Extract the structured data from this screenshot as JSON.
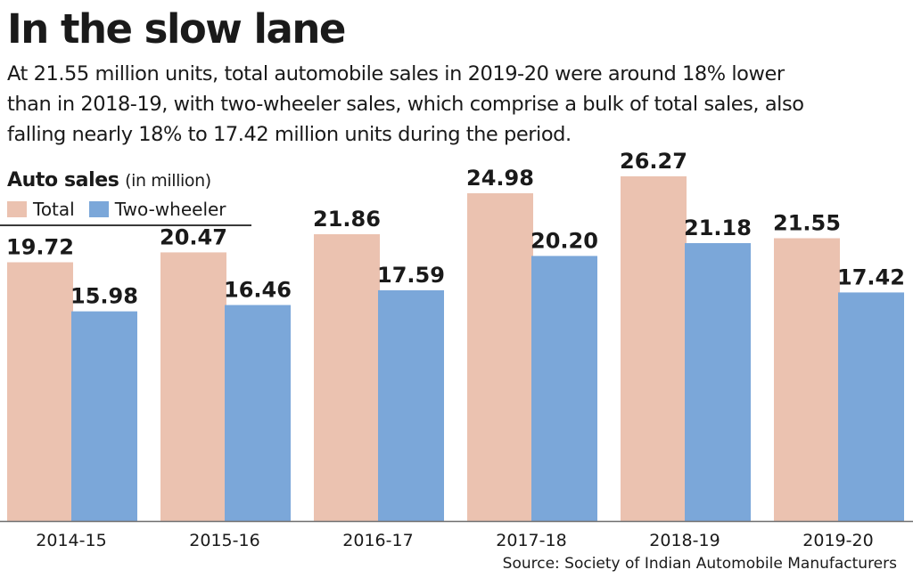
{
  "title": "In the slow lane",
  "subtitle_lines": [
    "At 21.55 million units, total automobile sales in 2019-20 were around 18% lower",
    "than in 2018-19, with two-wheeler sales, which comprise a bulk of total sales, also",
    "falling nearly 18% to 17.42 million units during the period."
  ],
  "section_title": "Auto sales",
  "section_unit": "(in million)",
  "source": "Source: Society of Indian Automobile Manufacturers",
  "colors": {
    "total": "#ebc2b0",
    "two_wheeler": "#7ba7d9",
    "axis": "#6f6f6f",
    "text": "#1a1a1a"
  },
  "chart_data": {
    "type": "bar",
    "categories": [
      "2014-15",
      "2015-16",
      "2016-17",
      "2017-18",
      "2018-19",
      "2019-20"
    ],
    "series": [
      {
        "name": "Total",
        "values": [
          19.72,
          20.47,
          21.86,
          24.98,
          26.27,
          21.55
        ],
        "labels": [
          "19.72",
          "20.47",
          "21.86",
          "24.98",
          "26.27",
          "21.55"
        ]
      },
      {
        "name": "Two-wheeler",
        "values": [
          15.98,
          16.46,
          17.59,
          20.2,
          21.18,
          17.42
        ],
        "labels": [
          "15.98",
          "16.46",
          "17.59",
          "20.20",
          "21.18",
          "17.42"
        ]
      }
    ],
    "title": "Auto sales",
    "xlabel": "",
    "ylabel": "",
    "ylim": [
      0,
      26.27
    ],
    "grid": false,
    "legend": "top-left"
  }
}
